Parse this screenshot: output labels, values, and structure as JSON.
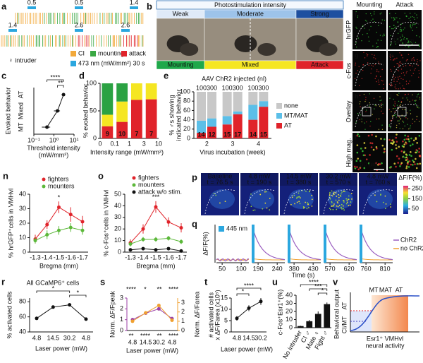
{
  "panels": {
    "a": {
      "label": "a",
      "stim_labels": [
        0.5,
        0.5,
        1.4,
        1.4,
        2.6,
        2.6
      ],
      "intruder": "♀ intruder",
      "legend": [
        {
          "name": "CI",
          "color": "#f2a93b"
        },
        {
          "name": "mounting",
          "color": "#3aa843"
        },
        {
          "name": "attack",
          "color": "#e0232a"
        },
        {
          "name": "473 nm (mW/mm²) 30 s",
          "color": "#2ba7df"
        }
      ]
    },
    "b": {
      "label": "b",
      "title": "Photostimulation intensity",
      "intensities": [
        "Weak",
        "Moderate",
        "Strong"
      ],
      "behaviors": [
        "Mounting",
        "Mixed",
        "Attack"
      ]
    },
    "fm": {
      "headers": [
        "Mounting",
        "Attack"
      ],
      "rows": [
        "hrGFP",
        "c-Fos",
        "Overlay",
        "High mag."
      ],
      "letters": [
        "f",
        "j",
        "g",
        "k",
        "h",
        "l",
        "i",
        "m"
      ],
      "scale_bars": [
        "150 µm",
        "50 µm"
      ]
    },
    "c": {
      "label": "c",
      "type": "scatter",
      "ylabel": "Evoked behavior",
      "categories": [
        "MT",
        "Mixed",
        "AT"
      ],
      "xlabel": [
        "Threshold intensity",
        "(mW/mm²)"
      ],
      "x": [
        0.45,
        1.5,
        3.0
      ],
      "xerr": [
        0.2,
        0.5,
        0.6
      ],
      "xlim": [
        0.1,
        10
      ],
      "log_x": true,
      "xticks": [
        {
          "value": 0.1,
          "label": "10⁻¹"
        },
        {
          "value": 1,
          "label": "10⁰"
        },
        {
          "value": 10,
          "label": "10¹"
        }
      ],
      "significance": [
        "****",
        "**"
      ],
      "color": "#111111"
    },
    "d": {
      "label": "d",
      "type": "stacked_bar",
      "ylabel": "% evoked behavior",
      "xlabel": "Intensity range (mW/mm²)",
      "edges": [
        0,
        0.1,
        1,
        3,
        10
      ],
      "n": [
        9,
        10,
        7,
        7
      ],
      "series": [
        {
          "color": "#e0232a",
          "values": [
            22,
            30,
            70,
            71
          ]
        },
        {
          "color": "#f5e622",
          "values": [
            21,
            37,
            30,
            29
          ]
        },
        {
          "color": "#2ba243",
          "values": [
            57,
            33,
            0,
            0
          ]
        }
      ],
      "ylim": [
        0,
        100
      ],
      "yticks": [
        0,
        50,
        100
      ]
    },
    "e": {
      "label": "e",
      "type": "stacked_bar",
      "title": "AAV ChR2 injected (nl)",
      "ylabel": [
        "% ♂s showing",
        "indicated behavior"
      ],
      "xlabel": "Virus incubation (week)",
      "groups": [
        2,
        3,
        4
      ],
      "doses": [
        100,
        300,
        100,
        300,
        100,
        300
      ],
      "n": [
        14,
        12,
        15,
        17,
        14,
        15
      ],
      "series": [
        {
          "name": "AT",
          "color": "#e0232a",
          "values": [
            12,
            25,
            30,
            52,
            40,
            68
          ]
        },
        {
          "name": "MT/MAT",
          "color": "#5bbfe8",
          "values": [
            26,
            18,
            18,
            6,
            32,
            12
          ]
        },
        {
          "name": "none",
          "color": "#c8c8c8",
          "values": [
            62,
            57,
            52,
            42,
            28,
            20
          ]
        }
      ],
      "ylim": [
        0,
        100
      ],
      "yticks": [
        0,
        20,
        40,
        60,
        80,
        100
      ]
    },
    "n": {
      "label": "n",
      "type": "line",
      "ylabel": "% hrGFP⁺cells in VMHvl",
      "xlabel": "Bregma (mm)",
      "categories": [
        -1.3,
        -1.4,
        -1.5,
        -1.6,
        -1.7
      ],
      "series": [
        {
          "name": "fighters",
          "color": "#e0232a",
          "values": [
            9,
            19,
            31,
            26,
            21
          ],
          "errors": [
            3,
            3,
            4,
            5,
            4
          ]
        },
        {
          "name": "mounters",
          "color": "#5cb83a",
          "values": [
            8,
            12,
            15,
            17,
            15
          ],
          "errors": [
            2,
            3,
            3,
            3,
            3
          ]
        }
      ],
      "ylim": [
        0,
        40
      ],
      "yticks": [
        0,
        10,
        20,
        30,
        40
      ],
      "significance": "*"
    },
    "o": {
      "label": "o",
      "type": "line",
      "ylabel": "% c-Fos⁺cells in VMHvl",
      "xlabel": "Bregma (mm)",
      "categories": [
        -1.3,
        -1.4,
        -1.5,
        -1.6,
        -1.7
      ],
      "series": [
        {
          "name": "fighters",
          "color": "#e0232a",
          "values": [
            8,
            20,
            39,
            26,
            21
          ],
          "errors": [
            3,
            4,
            5,
            4,
            4
          ]
        },
        {
          "name": "mounters",
          "color": "#5cb83a",
          "values": [
            7,
            11,
            11,
            12,
            9
          ],
          "errors": [
            2,
            2,
            2,
            2,
            2
          ]
        },
        {
          "name": "attack w/o stim.",
          "color": "#111111",
          "values": [
            2,
            3,
            2,
            3,
            1
          ],
          "errors": [
            1,
            1,
            1,
            1,
            1
          ]
        }
      ],
      "ylim": [
        0,
        50
      ],
      "yticks": [
        0,
        10,
        20,
        30,
        40,
        50
      ],
      "significance": "***"
    },
    "p": {
      "label": "p",
      "frames": [
        {
          "power": "Baseline",
          "time": "t = 76.5 s"
        },
        {
          "power": "4.8 mW",
          "time": "t = 190 s"
        },
        {
          "power": "14.5 mW",
          "time": "t = 380 s"
        },
        {
          "power": "30.2 mW",
          "time": "t = 570 s"
        },
        {
          "power": "4.8 mW",
          "time": "t = 760 s"
        }
      ],
      "colorbar": {
        "title": "ΔF/F(%)",
        "lim": [
          0,
          280
        ],
        "ticks": [
          50,
          150,
          250
        ]
      }
    },
    "q": {
      "label": "q",
      "ylabel": "ΔF/F(%)",
      "xlabel": "Time (s)",
      "stim_label": "445 nm",
      "stim_color": "#2ba7df",
      "xticks": [
        50,
        100,
        190,
        240,
        380,
        430,
        570,
        620,
        760,
        810
      ],
      "legend": [
        {
          "name": "ChR2",
          "color": "#9b5fc0"
        },
        {
          "name": "no ChR2",
          "color": "#f0a030"
        }
      ]
    },
    "r": {
      "label": "r",
      "type": "line",
      "title": "All GCaMP6⁺ cells",
      "ylabel": "% activated cells",
      "xlabel": "Laser power (mW)",
      "categories": [
        4.8,
        14.5,
        30.2,
        4.8
      ],
      "values": [
        58,
        73,
        76,
        57
      ],
      "ylim": [
        40,
        85
      ],
      "yticks": [
        40,
        60,
        80
      ],
      "significance": [
        "*",
        "*"
      ],
      "color": "#111111"
    },
    "s": {
      "label": "s",
      "type": "line",
      "ylabel": "Norm. ΔF/Fpeak",
      "y2label": "Norm. ΔF/Farea",
      "xlabel": "Laser power (mW)",
      "categories": [
        4.8,
        14.5,
        30.2,
        4.8
      ],
      "series": [
        {
          "color": "#9b3fa5",
          "values": [
            1.0,
            1.6,
            2.0,
            1.1
          ]
        },
        {
          "color": "#f0a030",
          "axis": "y2",
          "values": [
            1.0,
            1.9,
            2.7,
            1.1
          ]
        }
      ],
      "ylim": [
        0,
        3
      ],
      "yticks": [
        0,
        1,
        2,
        3
      ],
      "y2lim": [
        0,
        3.5
      ],
      "y2ticks": [
        0,
        1,
        2,
        3
      ],
      "significance_area": [
        "****",
        "*",
        "**",
        "****"
      ],
      "significance_peak": [
        "**",
        "****",
        "**",
        "****"
      ]
    },
    "t": {
      "label": "t",
      "type": "line",
      "ylabel": [
        "# activated cells",
        "x ΔF/Farea (x10⁵)"
      ],
      "xlabel": "Laser power (mW)",
      "categories": [
        4.8,
        14.5,
        30.2
      ],
      "values": [
        6,
        10.5,
        13.5
      ],
      "errors": [
        1,
        1.3,
        1.5
      ],
      "ylim": [
        0,
        15
      ],
      "yticks": [
        0,
        5,
        10,
        15
      ],
      "significance": [
        "*",
        "****"
      ],
      "color": "#111111"
    },
    "u": {
      "label": "u",
      "type": "bar",
      "ylabel": "c-Fos⁺Esr1⁺(%)",
      "categories": [
        "No intruder",
        "CI ♂",
        "Mate ♀",
        "Fight ♂"
      ],
      "values": [
        2,
        8,
        17,
        29
      ],
      "errors": [
        0.5,
        1.5,
        3,
        2
      ],
      "ylim": [
        0,
        40
      ],
      "yticks": [
        0,
        10,
        20,
        30,
        40
      ],
      "significance": [
        "****",
        "***",
        "*"
      ],
      "color": "#111111"
    },
    "v": {
      "label": "v",
      "ylabel": "Behavioral output",
      "y_marks": [
        "CI/MT",
        "AT"
      ],
      "x_marks": [
        "MT",
        "MAT",
        "AT"
      ],
      "xlabel": [
        "Esr1⁺ VMHvl",
        "neural activity"
      ]
    }
  }
}
